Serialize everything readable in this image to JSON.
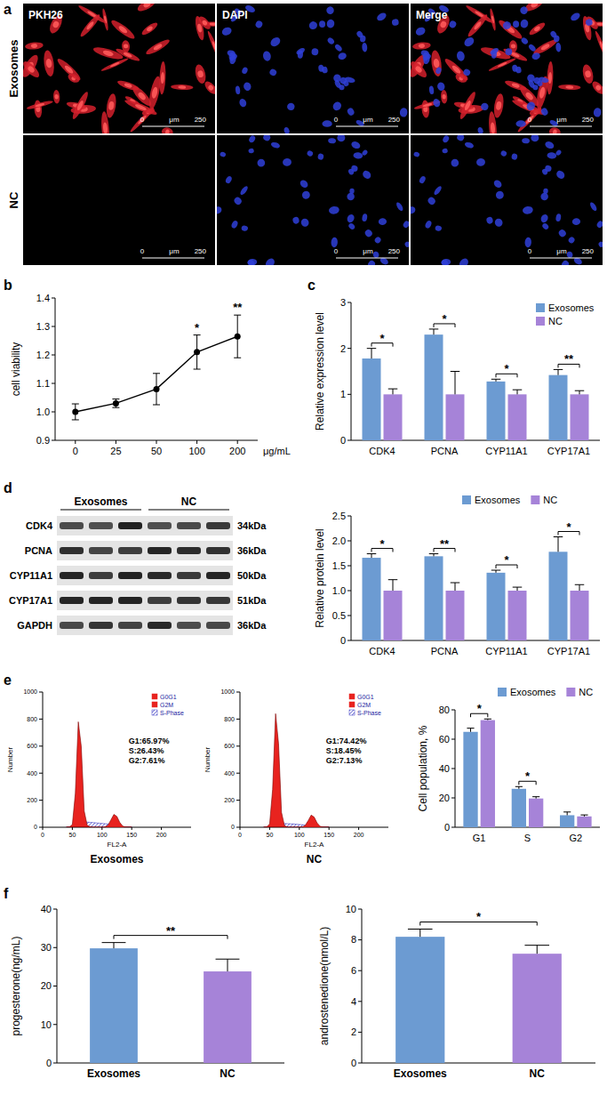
{
  "image_panel": {
    "panel": "a",
    "columns": [
      "PKH26",
      "DAPI",
      "Merge"
    ],
    "rows": [
      "Exosomes",
      "NC"
    ],
    "scale_bar": {
      "min": 0,
      "unit": "μm",
      "max": 250
    }
  },
  "blot": {
    "panel": "d",
    "lanes": [
      "Exosomes",
      "NC"
    ],
    "rows": [
      {
        "protein": "CDK4",
        "size": "34kDa"
      },
      {
        "protein": "PCNA",
        "size": "36kDa"
      },
      {
        "protein": "CYP11A1",
        "size": "50kDa"
      },
      {
        "protein": "CYP17A1",
        "size": "51kDa"
      },
      {
        "protein": "GAPDH",
        "size": "36kDa"
      }
    ]
  },
  "chart_data": [
    {
      "panel": "b",
      "type": "line",
      "categories": [
        "0",
        "25",
        "50",
        "100",
        "200"
      ],
      "values": [
        1.0,
        1.03,
        1.08,
        1.21,
        1.265
      ],
      "errors": [
        0.028,
        0.015,
        0.055,
        0.06,
        0.075
      ],
      "color": "#000000",
      "marker": "circle",
      "ylim": [
        0.9,
        1.4
      ],
      "yticks": [
        0.9,
        {
          "value": 1,
          "label": "1.0"
        },
        1.1,
        1.2,
        1.3,
        1.4
      ],
      "y_label": "cell viability",
      "x_label": "μg/mL",
      "annotations": [
        null,
        null,
        null,
        "*",
        "**"
      ]
    },
    {
      "panel": "c",
      "type": "bar",
      "categories": [
        "CDK4",
        "PCNA",
        "CYP11A1",
        "CYP17A1"
      ],
      "series": [
        {
          "name": "Exosomes",
          "color": "#6c9bd2",
          "values": [
            1.78,
            2.3,
            1.28,
            1.42
          ],
          "errors": [
            0.22,
            0.12,
            0.05,
            0.12
          ]
        },
        {
          "name": "NC",
          "color": "#a683d8",
          "values": [
            1,
            1,
            1,
            1
          ],
          "errors": [
            0.12,
            0.5,
            0.1,
            0.08
          ]
        }
      ],
      "ylim": [
        0,
        3
      ],
      "yticks": [
        0,
        1,
        2,
        3
      ],
      "y_label": "Relative expression level",
      "legend": "upper right",
      "annotations": [
        "*",
        "*",
        "*",
        "**"
      ]
    },
    {
      "type": "bar",
      "categories": [
        "CDK4",
        "PCNA",
        "CYP11A1",
        "CYP17A1"
      ],
      "series": [
        {
          "name": "Exosomes",
          "color": "#6c9bd2",
          "values": [
            1.66,
            1.69,
            1.36,
            1.78
          ],
          "errors": [
            0.08,
            0.05,
            0.05,
            0.3
          ]
        },
        {
          "name": "NC",
          "color": "#a683d8",
          "values": [
            1,
            1,
            1,
            1
          ],
          "errors": [
            0.22,
            0.16,
            0.07,
            0.12
          ]
        }
      ],
      "ylim": [
        0,
        2.5
      ],
      "yticks": [
        0,
        0.5,
        {
          "value": 1,
          "label": "1.0"
        },
        1.5,
        {
          "value": 2,
          "label": "2.0"
        },
        2.5
      ],
      "y_label": "Relative protein level",
      "legend": "top",
      "annotations": [
        "*",
        "**",
        "*",
        "*"
      ]
    },
    {
      "panel": "e",
      "type": "area",
      "title": "Exosomes",
      "x": [
        40,
        45,
        50,
        55,
        60,
        65,
        70,
        75,
        80,
        85,
        90,
        95,
        100,
        105,
        110,
        115,
        120,
        125,
        130,
        135,
        140,
        145,
        150
      ],
      "series": [
        {
          "name": "G0G1",
          "color": "#e8231f",
          "values": [
            0,
            2,
            20,
            250,
            780,
            600,
            120,
            15,
            3,
            0,
            0,
            0,
            0,
            0,
            0,
            0,
            0,
            0,
            0,
            0,
            0,
            0,
            0
          ]
        },
        {
          "name": "G2M",
          "color": "#e8231f",
          "values": [
            0,
            0,
            0,
            0,
            0,
            0,
            0,
            0,
            0,
            0,
            0,
            0,
            0,
            2,
            15,
            55,
            95,
            80,
            35,
            8,
            1,
            0,
            0
          ]
        },
        {
          "name": "S-Phase",
          "color": "#3030c0",
          "line_style": "hatched",
          "values": [
            0,
            0,
            2,
            10,
            25,
            35,
            38,
            38,
            36,
            34,
            32,
            30,
            28,
            26,
            24,
            20,
            15,
            10,
            5,
            2,
            0,
            0,
            0
          ]
        }
      ],
      "xlim": [
        0,
        250
      ],
      "xticks": [
        0,
        50,
        100,
        150,
        200
      ],
      "ylim": [
        0,
        1000
      ],
      "yticks": [
        0,
        200,
        400,
        600,
        800,
        1000
      ],
      "x_label": "FL2-A",
      "y_label": "Number",
      "annotations": [
        "G1:65.97%",
        "S:26.43%",
        "G2:7.61%"
      ],
      "legend": "upper right"
    },
    {
      "type": "area",
      "title": "NC",
      "x": [
        40,
        45,
        50,
        55,
        60,
        65,
        70,
        75,
        80,
        85,
        90,
        95,
        100,
        105,
        110,
        115,
        120,
        125,
        130,
        135,
        140,
        145,
        150
      ],
      "series": [
        {
          "name": "G0G1",
          "color": "#e8231f",
          "values": [
            0,
            2,
            25,
            280,
            840,
            620,
            110,
            12,
            2,
            0,
            0,
            0,
            0,
            0,
            0,
            0,
            0,
            0,
            0,
            0,
            0,
            0,
            0
          ]
        },
        {
          "name": "G2M",
          "color": "#e8231f",
          "values": [
            0,
            0,
            0,
            0,
            0,
            0,
            0,
            0,
            0,
            0,
            0,
            0,
            0,
            2,
            14,
            50,
            90,
            75,
            32,
            7,
            1,
            0,
            0
          ]
        },
        {
          "name": "S-Phase",
          "color": "#3030c0",
          "line_style": "hatched",
          "values": [
            0,
            0,
            2,
            8,
            18,
            25,
            27,
            27,
            26,
            25,
            24,
            22,
            20,
            18,
            16,
            13,
            10,
            7,
            4,
            1,
            0,
            0,
            0
          ]
        }
      ],
      "xlim": [
        0,
        250
      ],
      "xticks": [
        0,
        50,
        100,
        150,
        200
      ],
      "ylim": [
        0,
        1000
      ],
      "yticks": [
        0,
        200,
        400,
        600,
        800,
        1000
      ],
      "x_label": "FL2-A",
      "y_label": "Number",
      "annotations": [
        "G1:74.42%",
        "S:18.45%",
        "G2:7.13%"
      ],
      "legend": "upper right"
    },
    {
      "type": "bar",
      "categories": [
        "G1",
        "S",
        "G2"
      ],
      "series": [
        {
          "name": "Exosomes",
          "color": "#6c9bd2",
          "values": [
            65,
            26.2,
            8.2
          ],
          "errors": [
            2.5,
            1.5,
            2.2
          ]
        },
        {
          "name": "NC",
          "color": "#a683d8",
          "values": [
            73,
            19.6,
            7.4
          ],
          "errors": [
            0.8,
            1.2,
            1
          ]
        }
      ],
      "ylim": [
        0,
        80
      ],
      "yticks": [
        0,
        20,
        40,
        60,
        80
      ],
      "y_label": "Cell population, %",
      "legend": "top",
      "annotations": [
        "*",
        "*",
        null
      ]
    },
    {
      "panel": "f",
      "type": "bar",
      "categories": [
        "Exosomes",
        "NC"
      ],
      "values": [
        29.8,
        23.8
      ],
      "errors": [
        1.5,
        3.2
      ],
      "colors": [
        "#6c9bd2",
        "#a683d8"
      ],
      "ylim": [
        0,
        40
      ],
      "yticks": [
        0,
        10,
        20,
        30,
        40
      ],
      "y_label": "progesterone(ng/mL)",
      "annotation": "**"
    },
    {
      "type": "bar",
      "categories": [
        "Exosomes",
        "NC"
      ],
      "values": [
        8.2,
        7.1
      ],
      "errors": [
        0.5,
        0.55
      ],
      "colors": [
        "#6c9bd2",
        "#a683d8"
      ],
      "ylim": [
        0,
        10
      ],
      "yticks": [
        0,
        2,
        4,
        6,
        8,
        10
      ],
      "y_label": "androstenedione(nmol/L)",
      "annotation": "*"
    }
  ]
}
